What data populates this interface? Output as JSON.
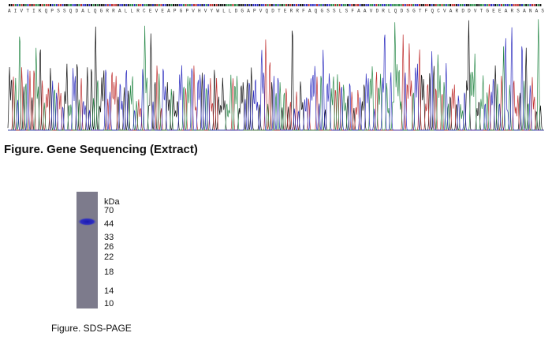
{
  "sequencing": {
    "amino_acids": "A I V T I K Q P S S Q D A L Q G R R A L L R C E V E A P G P V H V Y W L L D G A P V Q D T E R R F A Q G S S L S F A A V D R L Q D S G T F Q C V A R D D V T G E E A R S A N A S",
    "caption": "Figure. Gene Sequencing (Extract)"
  },
  "gel": {
    "unit_label": "kDa",
    "markers": [
      "70",
      "44",
      "33",
      "26",
      "22",
      "18",
      "14",
      "10"
    ],
    "caption": "Figure. SDS-PAGE"
  }
}
